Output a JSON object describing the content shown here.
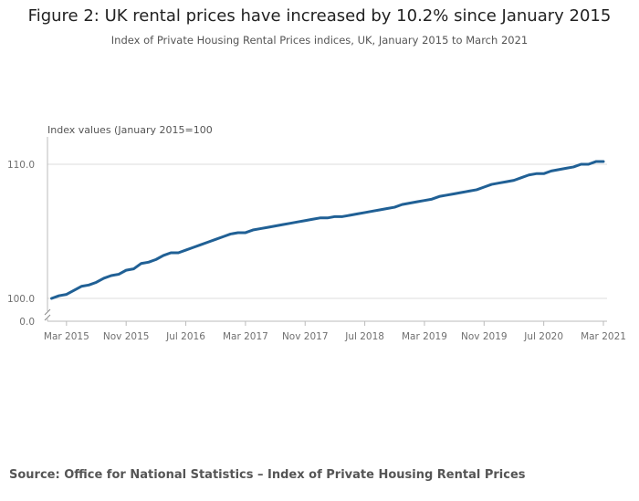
{
  "title": "Figure 2: UK rental prices have increased by 10.2% since January 2015",
  "subtitle": "Index of Private Housing Rental Prices indices, UK, January 2015 to March 2021",
  "source": "Source: Office for National Statistics – Index of Private Housing Rental Prices",
  "colors": {
    "line": "#206095",
    "grid": "#dddddd",
    "axis": "#bbbbbb",
    "text": "#707070"
  },
  "chart_data": {
    "type": "line",
    "ylabel": "Index values (January 2015=100",
    "y_ticks": [
      {
        "value": 110,
        "label": "110.0"
      },
      {
        "value": 100,
        "label": "100.0"
      }
    ],
    "y_break": {
      "value": 0,
      "label": "0.0"
    },
    "ylim": [
      100,
      110
    ],
    "x_ticks": [
      "Mar 2015",
      "Nov 2015",
      "Jul 2016",
      "Mar 2017",
      "Nov 2017",
      "Jul 2018",
      "Mar 2019",
      "Nov 2019",
      "Jul 2020",
      "Mar 2021"
    ],
    "x_tick_month_index": [
      2,
      10,
      18,
      26,
      34,
      42,
      50,
      58,
      66,
      74
    ],
    "series": [
      {
        "x_start": "Jan 2015",
        "values": [
          100.0,
          100.2,
          100.3,
          100.6,
          100.9,
          101.0,
          101.2,
          101.5,
          101.7,
          101.8,
          102.1,
          102.2,
          102.6,
          102.7,
          102.9,
          103.2,
          103.4,
          103.4,
          103.6,
          103.8,
          104.0,
          104.2,
          104.4,
          104.6,
          104.8,
          104.9,
          104.9,
          105.1,
          105.2,
          105.3,
          105.4,
          105.5,
          105.6,
          105.7,
          105.8,
          105.9,
          106.0,
          106.0,
          106.1,
          106.1,
          106.2,
          106.3,
          106.4,
          106.5,
          106.6,
          106.7,
          106.8,
          107.0,
          107.1,
          107.2,
          107.3,
          107.4,
          107.6,
          107.7,
          107.8,
          107.9,
          108.0,
          108.1,
          108.3,
          108.5,
          108.6,
          108.7,
          108.8,
          109.0,
          109.2,
          109.3,
          109.3,
          109.5,
          109.6,
          109.7,
          109.8,
          110.0,
          110.0,
          110.2,
          110.2
        ]
      }
    ]
  }
}
